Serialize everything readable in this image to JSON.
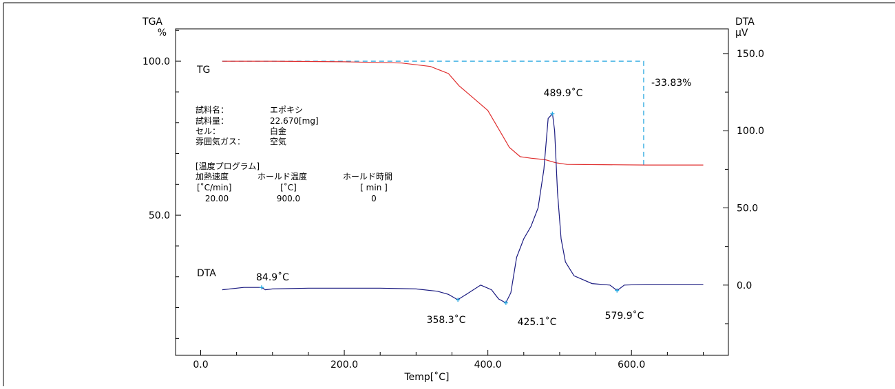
{
  "chart_data": {
    "type": "line",
    "left_axis": {
      "title_line1": "TGA",
      "title_line2": "%",
      "ticks": [
        100.0,
        50.0
      ],
      "tick_labels": [
        "100.0",
        "50.0"
      ],
      "range": [
        4.5,
        110.5
      ]
    },
    "right_axis": {
      "title_line1": "DTA",
      "title_line2": "µV",
      "ticks": [
        150.0,
        100.0,
        50.0,
        0.0
      ],
      "tick_labels": [
        "150.0",
        "100.0",
        "50.0",
        "0.0"
      ],
      "range": [
        -45.5,
        166.0
      ]
    },
    "x_axis": {
      "title": "Temp[˚C]",
      "ticks": [
        0,
        200,
        400,
        600
      ],
      "tick_labels": [
        "0.0",
        "200.0",
        "400.0",
        "600.0"
      ],
      "range": [
        -35,
        735
      ]
    },
    "grid": false,
    "series": [
      {
        "name": "TG",
        "color": "#e03030",
        "axis": "left",
        "x": [
          30,
          100,
          200,
          280,
          320,
          345,
          360,
          380,
          400,
          420,
          430,
          445,
          460,
          480,
          495,
          510,
          560,
          620,
          700
        ],
        "y": [
          100.0,
          100.0,
          99.8,
          99.4,
          98.3,
          96.0,
          92.0,
          88.0,
          84.0,
          76.0,
          72.0,
          69.0,
          68.5,
          68.0,
          67.0,
          66.5,
          66.4,
          66.3,
          66.3
        ]
      },
      {
        "name": "DTA",
        "color": "#1a1a80",
        "axis": "right",
        "x": [
          30,
          60,
          85,
          90,
          100,
          150,
          200,
          250,
          300,
          330,
          345,
          358,
          370,
          390,
          405,
          415,
          425,
          432,
          440,
          450,
          460,
          470,
          478,
          484,
          490,
          493,
          497,
          502,
          508,
          520,
          545,
          570,
          580,
          590,
          620,
          660,
          700
        ],
        "y": [
          -3.0,
          -1.5,
          -1.5,
          -3.0,
          -2.5,
          -2.0,
          -2.0,
          -2.0,
          -2.5,
          -4.0,
          -6.0,
          -9.5,
          -6.0,
          0.0,
          -3.0,
          -9.0,
          -11.5,
          -5.0,
          18.0,
          30.0,
          38.0,
          50.0,
          75.0,
          108.0,
          111.0,
          100.0,
          60.0,
          30.0,
          15.0,
          6.0,
          1.0,
          0.0,
          -3.5,
          0.0,
          0.5,
          0.5,
          0.5
        ]
      }
    ],
    "annotations": [
      {
        "text": "TG",
        "series": "TG"
      },
      {
        "text": "DTA",
        "series": "DTA"
      },
      {
        "text": "-33.83%",
        "series": "TG"
      },
      {
        "text": "489.9˚C",
        "series": "DTA",
        "x": 489.9,
        "y": 111.0
      },
      {
        "text": "84.9˚C",
        "series": "DTA",
        "x": 84.9,
        "y": -1.5
      },
      {
        "text": "358.3˚C",
        "series": "DTA",
        "x": 358.3,
        "y": -9.5
      },
      {
        "text": "425.1˚C",
        "series": "DTA",
        "x": 425.1,
        "y": -11.5
      },
      {
        "text": "579.9˚C",
        "series": "DTA",
        "x": 579.9,
        "y": -3.5
      }
    ],
    "mass_loss_bracket": {
      "x_start": 30,
      "x_end": 617,
      "y_top": 100.0,
      "y_bottom": 66.3,
      "color": "#2aa8e0"
    }
  },
  "sample_info": {
    "rows": [
      {
        "key": "試料名：",
        "value": "エポキシ"
      },
      {
        "key": "試料量：",
        "value": "22.670[mg]"
      },
      {
        "key": "セル：",
        "value": "白金"
      },
      {
        "key": "雰囲気ガス：",
        "value": "空気"
      }
    ]
  },
  "temp_program": {
    "title": "[温度プログラム]",
    "columns": [
      {
        "header": "加熱速度",
        "unit": "[˚C/min]",
        "value": "20.00"
      },
      {
        "header": "ホールド温度",
        "unit": "[˚C]",
        "value": "900.0"
      },
      {
        "header": "ホールド時間",
        "unit": "[  min  ]",
        "value": "0"
      }
    ]
  }
}
